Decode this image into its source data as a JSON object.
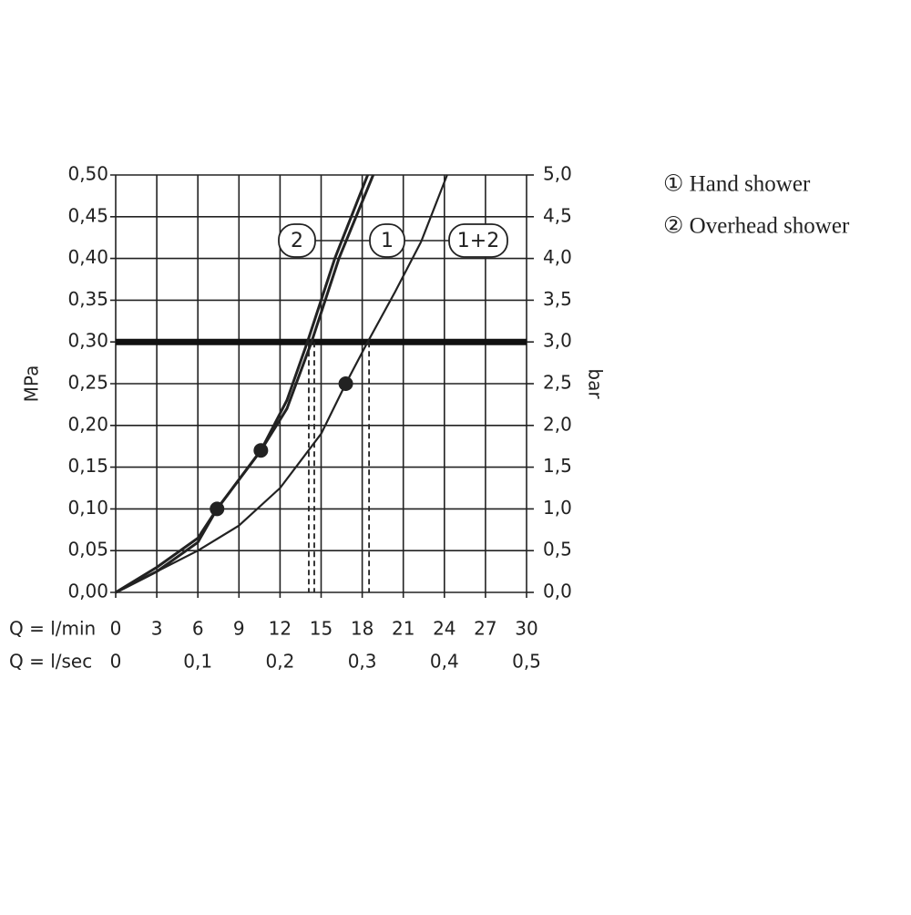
{
  "chart_data": {
    "type": "line",
    "y_label": "MPa",
    "y2_label": "bar",
    "x_label": "Q = l/min",
    "x2_label": "Q = l/sec",
    "xlim": [
      0,
      30
    ],
    "xticks": [
      0,
      3,
      6,
      9,
      12,
      15,
      18,
      21,
      24,
      27,
      30
    ],
    "x2lim": [
      0,
      0.5
    ],
    "x2ticks": [
      0,
      {
        "value": 0.1,
        "label": "0,1"
      },
      {
        "value": 0.2,
        "label": "0,2"
      },
      {
        "value": 0.3,
        "label": "0,3"
      },
      {
        "value": 0.4,
        "label": "0,4"
      },
      {
        "value": 0.5,
        "label": "0,5"
      }
    ],
    "ylim": [
      0,
      0.5
    ],
    "yticks": [
      {
        "value": 0,
        "label": "0,00"
      },
      {
        "value": 0.05,
        "label": "0,05"
      },
      {
        "value": 0.1,
        "label": "0,10"
      },
      {
        "value": 0.15,
        "label": "0,15"
      },
      {
        "value": 0.2,
        "label": "0,20"
      },
      {
        "value": 0.25,
        "label": "0,25"
      },
      {
        "value": 0.3,
        "label": "0,30"
      },
      {
        "value": 0.35,
        "label": "0,35"
      },
      {
        "value": 0.4,
        "label": "0,40"
      },
      {
        "value": 0.45,
        "label": "0,45"
      },
      {
        "value": 0.5,
        "label": "0,50"
      }
    ],
    "y2lim": [
      0,
      5
    ],
    "y2ticks": [
      {
        "value": 0,
        "label": "0,0"
      },
      {
        "value": 0.5,
        "label": "0,5"
      },
      {
        "value": 1,
        "label": "1,0"
      },
      {
        "value": 1.5,
        "label": "1,5"
      },
      {
        "value": 2,
        "label": "2,0"
      },
      {
        "value": 2.5,
        "label": "2,5"
      },
      {
        "value": 3,
        "label": "3,0"
      },
      {
        "value": 3.5,
        "label": "3,5"
      },
      {
        "value": 4,
        "label": "4,0"
      },
      {
        "value": 4.5,
        "label": "4,5"
      },
      {
        "value": 5,
        "label": "5,0"
      }
    ],
    "grid": true,
    "reference_line": 0.3,
    "drop_x": [
      14.1,
      14.5,
      18.5
    ],
    "series": [
      {
        "name": "2",
        "color": "#222222",
        "x": [
          0,
          3,
          6,
          7.4,
          10.6,
          12.5,
          14,
          16,
          18.4
        ],
        "values": [
          0,
          0.025,
          0.06,
          0.1,
          0.17,
          0.23,
          0.3,
          0.4,
          0.5
        ]
      },
      {
        "name": "1",
        "color": "#222222",
        "x": [
          0,
          3,
          6,
          7.4,
          10.6,
          12.5,
          14.3,
          16.3,
          18.8
        ],
        "values": [
          0,
          0.03,
          0.065,
          0.1,
          0.17,
          0.22,
          0.3,
          0.4,
          0.5
        ]
      },
      {
        "name": "1+2",
        "color": "#222222",
        "x": [
          0,
          6,
          9,
          12,
          15,
          16.8,
          18.4,
          20.4,
          22.3,
          24.2
        ],
        "values": [
          0,
          0.05,
          0.08,
          0.125,
          0.19,
          0.25,
          0.3,
          0.36,
          0.42,
          0.5
        ]
      }
    ],
    "markers": {
      "x": [
        7.4,
        10.6,
        16.8
      ],
      "y": [
        0.1,
        0.17,
        0.25
      ]
    },
    "legend_items": [
      "① Hand shower",
      "② Overhead shower"
    ]
  }
}
